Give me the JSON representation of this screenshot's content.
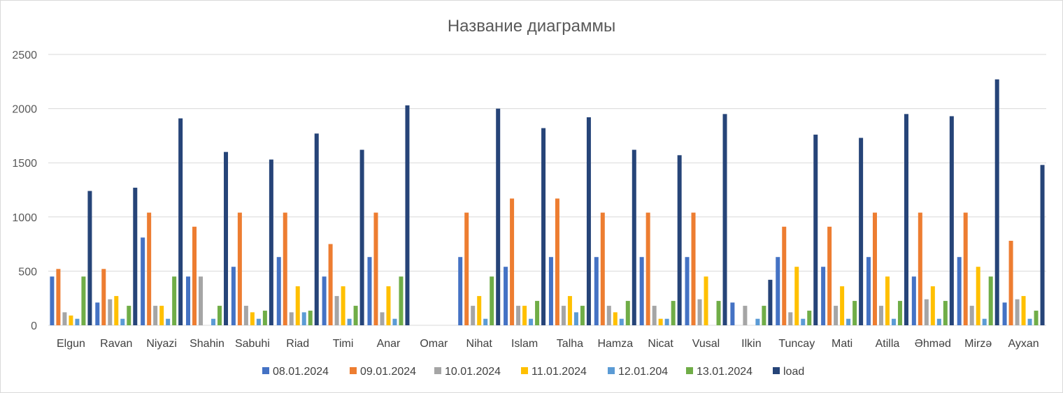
{
  "chart_data": {
    "type": "bar",
    "title": "Название диаграммы",
    "xlabel": "",
    "ylabel": "",
    "ylim": [
      0,
      2500
    ],
    "yticks": [
      0,
      500,
      1000,
      1500,
      2000,
      2500
    ],
    "grid": true,
    "legend_position": "bottom",
    "categories": [
      "Elgun",
      "Ravan",
      "Niyazi",
      "Shahin",
      "Sabuhi",
      "Riad",
      "Timi",
      "Anar",
      "Omar",
      "Nihat",
      "Islam",
      "Talha",
      "Hamza",
      "Nicat",
      "Vusal",
      "Ilkin",
      "Tuncay",
      "Mati",
      "Atilla",
      "Əhməd",
      "Mirzə",
      "Ayxan"
    ],
    "series": [
      {
        "name": "08.01.2024",
        "color": "#4472C4",
        "values": [
          450,
          210,
          810,
          450,
          540,
          630,
          450,
          630,
          0,
          630,
          540,
          630,
          630,
          630,
          630,
          210,
          630,
          540,
          630,
          450,
          630,
          210
        ]
      },
      {
        "name": "09.01.2024",
        "color": "#ED7D31",
        "values": [
          520,
          520,
          1040,
          910,
          1040,
          1040,
          750,
          1040,
          0,
          1040,
          1170,
          1170,
          1040,
          1040,
          1040,
          0,
          910,
          910,
          1040,
          1040,
          1040,
          780
        ]
      },
      {
        "name": "10.01.2024",
        "color": "#A5A5A5",
        "values": [
          120,
          240,
          180,
          450,
          180,
          120,
          270,
          120,
          0,
          180,
          180,
          180,
          180,
          180,
          240,
          180,
          120,
          180,
          180,
          240,
          180,
          240
        ]
      },
      {
        "name": "11.01.2024",
        "color": "#FFC000",
        "values": [
          90,
          270,
          180,
          0,
          120,
          360,
          360,
          360,
          0,
          270,
          180,
          270,
          120,
          60,
          450,
          0,
          540,
          360,
          450,
          360,
          540,
          270
        ]
      },
      {
        "name": "12.01.204",
        "color": "#5B9BD5",
        "values": [
          60,
          60,
          60,
          60,
          60,
          120,
          60,
          60,
          0,
          60,
          60,
          120,
          60,
          60,
          0,
          60,
          60,
          60,
          60,
          60,
          60,
          60
        ]
      },
      {
        "name": "13.01.2024",
        "color": "#70AD47",
        "values": [
          450,
          180,
          450,
          180,
          135,
          135,
          180,
          450,
          0,
          450,
          225,
          180,
          225,
          225,
          225,
          180,
          135,
          225,
          225,
          225,
          450,
          135
        ]
      },
      {
        "name": "load",
        "color": "#264478",
        "values": [
          1240,
          1270,
          1910,
          1600,
          1530,
          1770,
          1620,
          2030,
          0,
          2000,
          1820,
          1920,
          1620,
          1570,
          1950,
          420,
          1760,
          1730,
          1950,
          1930,
          2270,
          1480
        ]
      }
    ]
  }
}
